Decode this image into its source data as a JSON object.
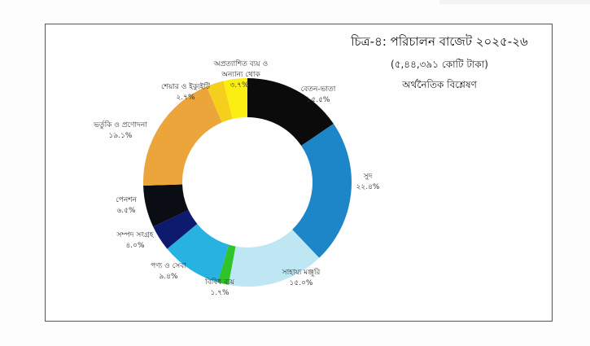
{
  "chart_data": {
    "type": "pie",
    "variant": "donut",
    "title": "চিত্র-৪: পরিচালন বাজেট ২০২৫-২৬",
    "subtitle": "(৫,৪৪,৩৯১ কোটি টাকা)",
    "subtitle2": "অর্থনৈতিক বিশ্লেষণ",
    "categories": [
      "বেতন-ভাতা",
      "সুদ",
      "সাহায্য মঞ্জুরি",
      "বিবিধ ব্যয়",
      "পণ্য ও সেবা",
      "সম্পদ সংগ্রহ",
      "পেনশন",
      "ভর্তুকি ও প্রণোদনা",
      "শেয়ার ও ইক্যুইটি",
      "অপ্রত্যাশিত ব্যয় ও অন্যান্য থোক"
    ],
    "values": [
      15.5,
      22.4,
      15.0,
      1.7,
      9.4,
      4.0,
      6.5,
      19.1,
      2.7,
      3.7
    ],
    "value_labels": [
      "১৫.৫%",
      "২২.৪%",
      "১৫.০%",
      "১.৭%",
      "৯.৪%",
      "৪.০%",
      "৬.৫%",
      "১৯.১%",
      "২.৭%",
      "৩.৭%"
    ],
    "colors": [
      "#0b0b0b",
      "#1d86c9",
      "#bfe6f3",
      "#2ec42a",
      "#27b2e2",
      "#0d1a6e",
      "#0a0d14",
      "#eba53a",
      "#f6cf1c",
      "#fbee12"
    ],
    "unit": "%",
    "total": "৫,৪৪,৩৯১ কোটি টাকা",
    "start_angle_deg": 0,
    "direction": "clockwise",
    "legend": "none (direct labels)"
  },
  "labels": [
    {
      "name": "বেতন-ভাতা",
      "value": "১৫.৫%"
    },
    {
      "name": "সুদ",
      "value": "২২.৪%"
    },
    {
      "name": "সাহায্য মঞ্জুরি",
      "value": "১৫.০%"
    },
    {
      "name": "বিবিধ ব্যয়",
      "value": "১.৭%"
    },
    {
      "name": "পণ্য ও সেবা",
      "value": "৯.৪%"
    },
    {
      "name": "সম্পদ সংগ্রহ",
      "value": "৪.০%"
    },
    {
      "name": "পেনশন",
      "value": "৬.৫%"
    },
    {
      "name": "ভর্তুকি ও প্রণোদনা",
      "value": "১৯.১%"
    },
    {
      "name": "শেয়ার ও ইক্যুইটি",
      "value": "২.৭%"
    },
    {
      "name": "অপ্রত্যাশিত ব্যয় ও",
      "name2": "অন্যান্য থোক",
      "value": "৩.৭%"
    }
  ]
}
